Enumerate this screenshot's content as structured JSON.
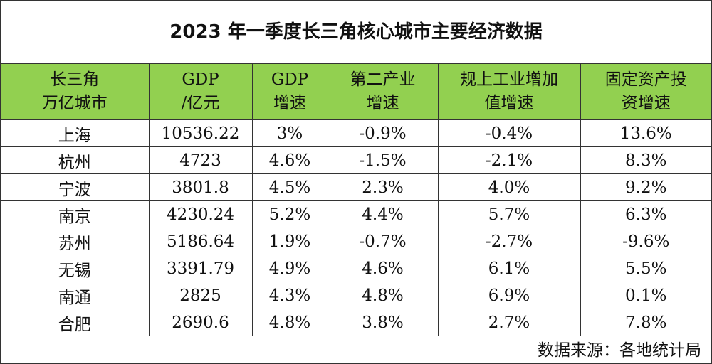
{
  "title": "2023 年一季度长三角核心城市主要经济数据",
  "headers": [
    [
      "长三角",
      "万亿城市"
    ],
    [
      "GDP",
      "/亿元"
    ],
    [
      "GDP",
      "增速"
    ],
    [
      "第二产业",
      "增速"
    ],
    [
      "规上工业增加",
      "值增速"
    ],
    [
      "固定资产投",
      "资增速"
    ]
  ],
  "rows": [
    [
      "上海",
      "10536.22",
      "3%",
      "-0.9%",
      "-0.4%",
      "13.6%"
    ],
    [
      "杭州",
      "4723",
      "4.6%",
      "-1.5%",
      "-2.1%",
      "8.3%"
    ],
    [
      "宁波",
      "3801.8",
      "4.5%",
      "2.3%",
      "4.0%",
      "9.2%"
    ],
    [
      "南京",
      "4230.24",
      "5.2%",
      "4.4%",
      "5.7%",
      "6.3%"
    ],
    [
      "苏州",
      "5186.64",
      "1.9%",
      "-0.7%",
      "-2.7%",
      "-9.6%"
    ],
    [
      "无锡",
      "3391.79",
      "4.9%",
      "4.6%",
      "6.1%",
      "5.5%"
    ],
    [
      "南通",
      "2825",
      "4.3%",
      "4.8%",
      "6.9%",
      "0.1%"
    ],
    [
      "合肥",
      "2690.6",
      "4.8%",
      "3.8%",
      "2.7%",
      "7.8%"
    ]
  ],
  "source": "数据来源：各地统计局",
  "colors": {
    "header_bg": "#92d050",
    "border": "#333333"
  }
}
